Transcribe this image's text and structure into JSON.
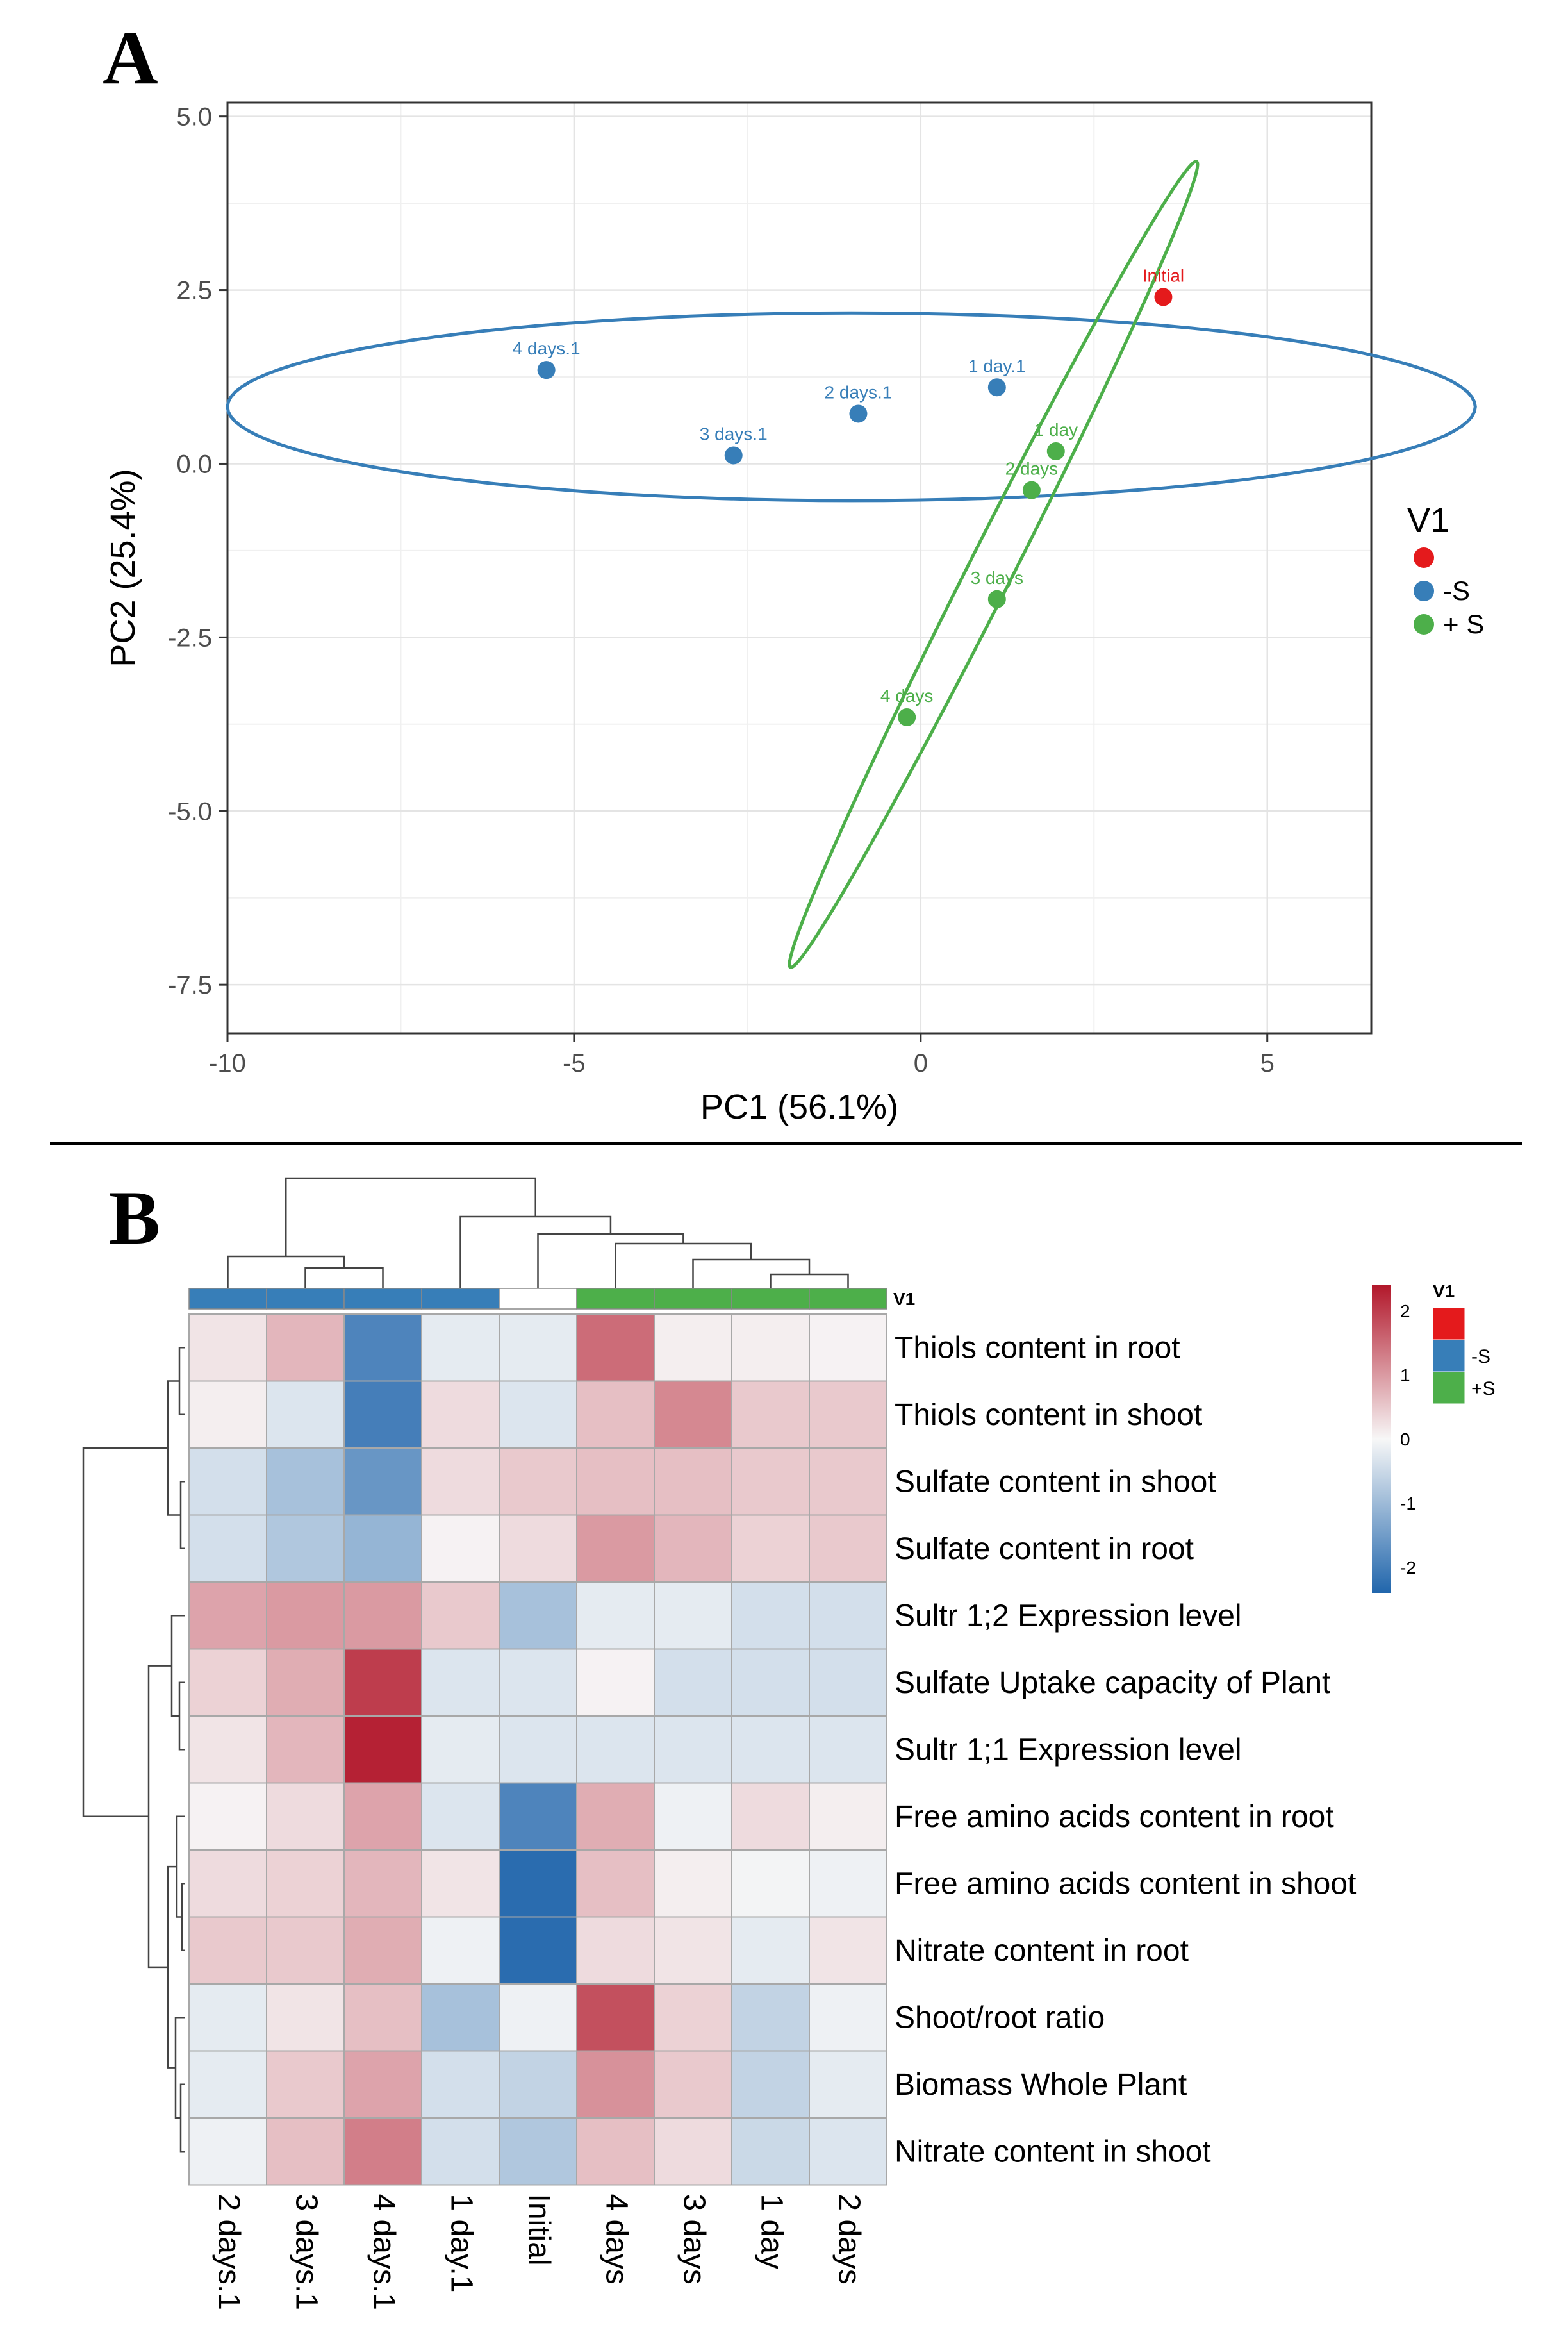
{
  "panels": {
    "a_letter": "A",
    "b_letter": "B"
  },
  "chart_data": [
    {
      "type": "scatter",
      "xlabel": "PC1 (56.1%)",
      "ylabel": "PC2 (25.4%)",
      "xlim": [
        -10,
        6.5
      ],
      "ylim": [
        -8.2,
        5.2
      ],
      "x_ticks": [
        -10,
        -5,
        0,
        5
      ],
      "x_tick_labels": [
        "-10",
        "-5",
        "0",
        "5"
      ],
      "y_ticks": [
        5.0,
        2.5,
        0.0,
        -2.5,
        -5.0,
        -7.5
      ],
      "y_tick_labels": [
        "5.0",
        "2.5",
        "0.0",
        "-2.5",
        "-5.0",
        "-7.5"
      ],
      "grid": true,
      "legend": {
        "title": "V1",
        "placement": "right",
        "entries": [
          {
            "label": "",
            "color": "#e41a1c"
          },
          {
            "label": "-S",
            "color": "#377eb8"
          },
          {
            "label": "+ S",
            "color": "#4daf4a"
          }
        ]
      },
      "points": [
        {
          "label": "Initial",
          "x": 3.5,
          "y": 2.4,
          "group": "initial",
          "color": "#e41a1c"
        },
        {
          "label": "4 days.1",
          "x": -5.4,
          "y": 1.35,
          "group": "-S",
          "color": "#377eb8"
        },
        {
          "label": "2 days.1",
          "x": -0.9,
          "y": 0.72,
          "group": "-S",
          "color": "#377eb8"
        },
        {
          "label": "1 day.1",
          "x": 1.1,
          "y": 1.1,
          "group": "-S",
          "color": "#377eb8"
        },
        {
          "label": "3 days.1",
          "x": -2.7,
          "y": 0.12,
          "group": "-S",
          "color": "#377eb8"
        },
        {
          "label": "1 day",
          "x": 1.95,
          "y": 0.18,
          "group": "+S",
          "color": "#4daf4a"
        },
        {
          "label": "2 days",
          "x": 1.6,
          "y": -0.38,
          "group": "+S",
          "color": "#4daf4a"
        },
        {
          "label": "3 days",
          "x": 1.1,
          "y": -1.95,
          "group": "+S",
          "color": "#4daf4a"
        },
        {
          "label": "4 days",
          "x": -0.2,
          "y": -3.65,
          "group": "+S",
          "color": "#4daf4a"
        }
      ],
      "ellipses": [
        {
          "group": "-S",
          "color": "#377eb8",
          "cx": -1.0,
          "cy": 0.82,
          "rx": 9.0,
          "ry": 1.35,
          "angle_deg": 0
        },
        {
          "group": "+S",
          "color": "#4daf4a",
          "cx": 1.05,
          "cy": -1.45,
          "rx": 6.5,
          "ry": 0.32,
          "angle_deg": 63.2
        }
      ]
    },
    {
      "type": "heatmap",
      "columns": [
        "2 days.1",
        "3 days.1",
        "4 days.1",
        "1 day.1",
        "Initial",
        "4 days",
        "3 days",
        "1 day",
        "2 days"
      ],
      "column_groups": [
        "-S",
        "-S",
        "-S",
        "-S",
        "initial",
        "+S",
        "+S",
        "+S",
        "+S"
      ],
      "annotation_title": "V1",
      "annotation_legend": {
        "title": "V1",
        "entries": [
          {
            "label": "",
            "color": "#e41a1c"
          },
          {
            "label": "-S",
            "color": "#377eb8"
          },
          {
            "label": "+S",
            "color": "#4daf4a"
          }
        ]
      },
      "rows": [
        "Thiols content in root",
        "Thiols content in shoot",
        "Sulfate content in shoot",
        "Sulfate content in root",
        "Sultr 1;2 Expression level",
        "Sulfate Uptake capacity of Plant",
        "Sultr 1;1 Expression level",
        "Free amino acids content in root",
        "Free amino acids content in shoot",
        "Nitrate content in root",
        "Shoot/root ratio",
        "Biomass Whole Plant",
        "Nitrate content in shoot"
      ],
      "values": [
        [
          0.2,
          0.7,
          -1.9,
          -0.2,
          -0.2,
          1.5,
          0.1,
          0.1,
          0.05
        ],
        [
          0.1,
          -0.3,
          -2.0,
          0.3,
          -0.3,
          0.6,
          1.2,
          0.5,
          0.5
        ],
        [
          -0.4,
          -0.9,
          -1.6,
          0.3,
          0.5,
          0.6,
          0.6,
          0.5,
          0.5
        ],
        [
          -0.4,
          -0.8,
          -1.1,
          0.05,
          0.3,
          1.0,
          0.7,
          0.4,
          0.5
        ],
        [
          0.9,
          1.0,
          1.0,
          0.5,
          -0.9,
          -0.2,
          -0.2,
          -0.4,
          -0.4
        ],
        [
          0.4,
          0.8,
          2.0,
          -0.3,
          -0.3,
          0.05,
          -0.4,
          -0.4,
          -0.4
        ],
        [
          0.2,
          0.7,
          2.3,
          -0.2,
          -0.3,
          -0.3,
          -0.3,
          -0.3,
          -0.3
        ],
        [
          0.05,
          0.3,
          0.9,
          -0.3,
          -1.9,
          0.8,
          -0.1,
          0.3,
          0.1
        ],
        [
          0.3,
          0.4,
          0.7,
          0.2,
          -2.3,
          0.6,
          0.1,
          -0.05,
          -0.1
        ],
        [
          0.5,
          0.5,
          0.8,
          -0.1,
          -2.3,
          0.3,
          0.2,
          -0.2,
          0.2
        ],
        [
          -0.2,
          0.2,
          0.6,
          -0.9,
          -0.1,
          1.8,
          0.4,
          -0.6,
          -0.1
        ],
        [
          -0.2,
          0.5,
          0.9,
          -0.4,
          -0.6,
          1.1,
          0.5,
          -0.6,
          -0.2
        ],
        [
          -0.1,
          0.6,
          1.3,
          -0.4,
          -0.8,
          0.6,
          0.3,
          -0.5,
          -0.3
        ]
      ],
      "color_scale": {
        "min": -2.4,
        "max": 2.4,
        "ticks": [
          2,
          1,
          0,
          -1,
          -2
        ],
        "tick_labels": [
          "2",
          "1",
          "0",
          "-1",
          "-2"
        ],
        "low_color": "#2166ac",
        "mid_color": "#f7f7f7",
        "high_color": "#b2182b"
      }
    }
  ]
}
